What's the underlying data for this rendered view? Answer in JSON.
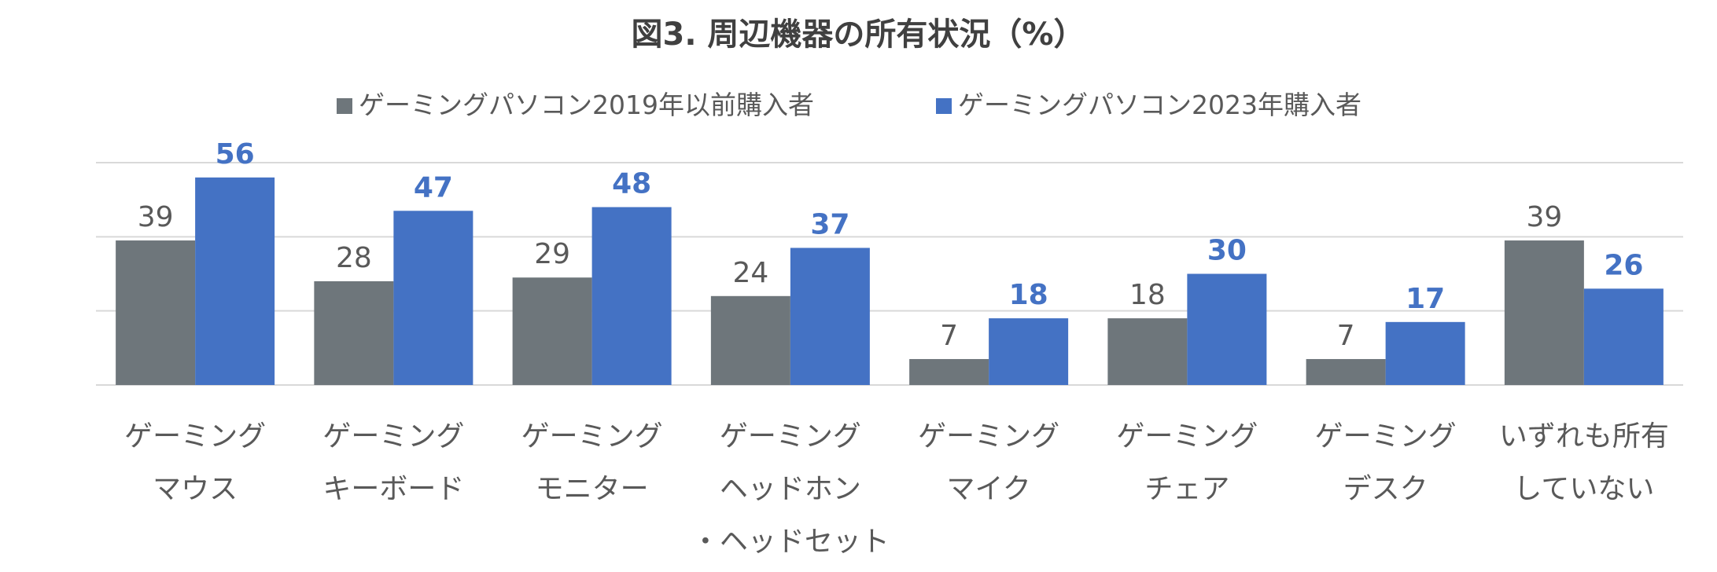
{
  "chart_data": {
    "type": "bar",
    "title": "図3. 周辺機器の所有状況（%）",
    "categories": [
      [
        "ゲーミング",
        "マウス"
      ],
      [
        "ゲーミング",
        "キーボード"
      ],
      [
        "ゲーミング",
        "モニター"
      ],
      [
        "ゲーミング",
        "ヘッドホン",
        "・ヘッドセット"
      ],
      [
        "ゲーミング",
        "マイク"
      ],
      [
        "ゲーミング",
        "チェア"
      ],
      [
        "ゲーミング",
        "デスク"
      ],
      [
        "いずれも所有",
        "していない"
      ]
    ],
    "series": [
      {
        "name": "ゲーミングパソコン2019年以前購入者",
        "values": [
          39,
          28,
          29,
          24,
          7,
          18,
          7,
          39
        ],
        "color": "#6E767B"
      },
      {
        "name": "ゲーミングパソコン2023年購入者",
        "values": [
          56,
          47,
          48,
          37,
          18,
          30,
          17,
          26
        ],
        "color": "#4472C4"
      }
    ],
    "ylim": [
      0,
      60
    ],
    "grid": true,
    "legend": "top-center"
  }
}
